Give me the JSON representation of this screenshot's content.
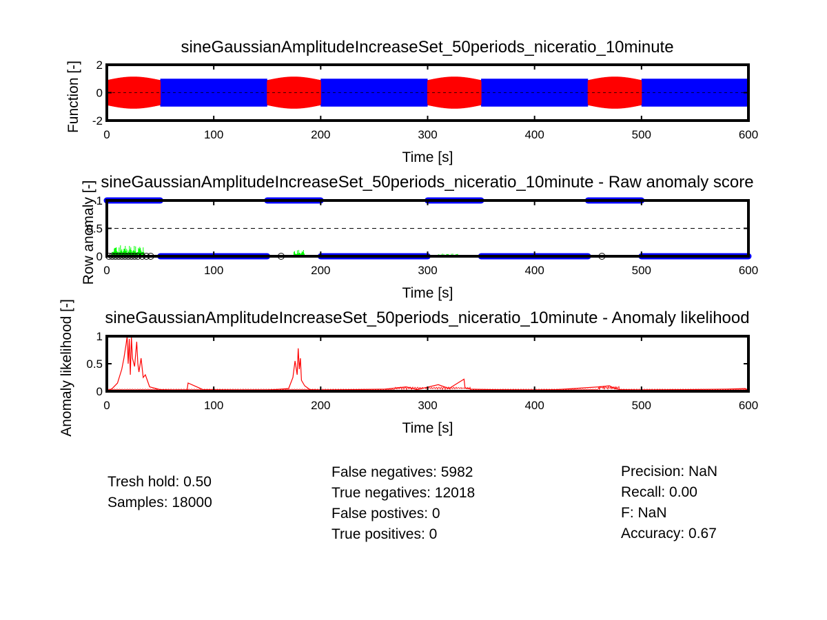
{
  "chart_data": [
    {
      "type": "line",
      "title": "sineGaussianAmplitudeIncreaseSet_50periods_niceratio_10minute",
      "xlabel": "Time [s]",
      "ylabel": "Function [-]",
      "xlim": [
        0,
        600
      ],
      "ylim": [
        -2,
        2
      ],
      "xticks": [
        0,
        100,
        200,
        300,
        400,
        500,
        600
      ],
      "yticks": [
        -2,
        0,
        2
      ],
      "grid": false,
      "series": [
        {
          "color": "#0000ff",
          "description": "sine signal, amplitude 1 (normal)",
          "segments": [
            [
              50,
              150
            ],
            [
              200,
              300
            ],
            [
              350,
              450
            ],
            [
              500,
              600
            ]
          ],
          "amplitude": 1.0
        },
        {
          "color": "#ff0000",
          "description": "sine signal, increased amplitude (anomalous)",
          "segments": [
            [
              0,
              50
            ],
            [
              150,
              200
            ],
            [
              300,
              350
            ],
            [
              450,
              500
            ]
          ],
          "amplitude": 1.15
        }
      ]
    },
    {
      "type": "scatter",
      "title": "sineGaussianAmplitudeIncreaseSet_50periods_niceratio_10minute - Raw anomaly score",
      "xlabel": "Time [s]",
      "ylabel": "Row anomaly [-]",
      "xlim": [
        0,
        600
      ],
      "ylim": [
        0,
        1
      ],
      "xticks": [
        0,
        100,
        200,
        300,
        400,
        500,
        600
      ],
      "yticks": [
        0,
        0.5,
        1
      ],
      "threshold": 0.5,
      "series": [
        {
          "color": "#0000ff",
          "description": "labels (1 = anomaly)",
          "runs": [
            {
              "y": 1,
              "from": 0,
              "to": 50
            },
            {
              "y": 1,
              "from": 150,
              "to": 200
            },
            {
              "y": 1,
              "from": 300,
              "to": 350
            },
            {
              "y": 1,
              "from": 450,
              "to": 500
            },
            {
              "y": 0,
              "from": 50,
              "to": 150
            },
            {
              "y": 0,
              "from": 200,
              "to": 300
            },
            {
              "y": 0,
              "from": 350,
              "to": 450
            },
            {
              "y": 0,
              "from": 500,
              "to": 600
            }
          ]
        },
        {
          "color": "#000000",
          "description": "detections (open circles)",
          "x": [
            2,
            5,
            8,
            11,
            14,
            17,
            20,
            23,
            26,
            29,
            33,
            37,
            41,
            163,
            463
          ]
        },
        {
          "color": "#00ff00",
          "description": "raw anomaly score",
          "bursts": [
            [
              5,
              35,
              0.2
            ],
            [
              175,
              185,
              0.12
            ],
            [
              310,
              330,
              0.05
            ]
          ]
        }
      ]
    },
    {
      "type": "line",
      "title": "sineGaussianAmplitudeIncreaseSet_50periods_niceratio_10minute - Anomaly likelihood",
      "xlabel": "Time [s]",
      "ylabel": "Anomaly likelihood [-]",
      "xlim": [
        0,
        600
      ],
      "ylim": [
        0,
        1
      ],
      "xticks": [
        0,
        100,
        200,
        300,
        400,
        500,
        600
      ],
      "yticks": [
        0,
        0.5,
        1
      ],
      "series": [
        {
          "color": "#ff0000",
          "description": "anomaly likelihood",
          "x": [
            0,
            5,
            10,
            14,
            16,
            18,
            19,
            20,
            21,
            22,
            23,
            24,
            26,
            28,
            29,
            30,
            32,
            34,
            36,
            40,
            50,
            60,
            75,
            76,
            90,
            120,
            150,
            170,
            174,
            176,
            178,
            179,
            180,
            181,
            182,
            185,
            190,
            200,
            230,
            260,
            280,
            290,
            310,
            320,
            334,
            335,
            340,
            360,
            400,
            420,
            460,
            470,
            475,
            480,
            500,
            540,
            580,
            597,
            600
          ],
          "y": [
            0.0,
            0.05,
            0.15,
            0.4,
            0.6,
            0.85,
            1.0,
            0.5,
            0.95,
            0.3,
            0.98,
            0.6,
            0.45,
            0.9,
            0.5,
            0.35,
            0.6,
            0.25,
            0.3,
            0.08,
            0.03,
            0.02,
            0.02,
            0.15,
            0.03,
            0.02,
            0.02,
            0.05,
            0.25,
            0.55,
            0.3,
            0.78,
            0.4,
            0.6,
            0.2,
            0.1,
            0.03,
            0.02,
            0.03,
            0.04,
            0.08,
            0.03,
            0.12,
            0.05,
            0.22,
            0.06,
            0.04,
            0.03,
            0.02,
            0.03,
            0.08,
            0.1,
            0.05,
            0.03,
            0.02,
            0.03,
            0.04,
            0.05,
            0.02
          ]
        }
      ]
    }
  ],
  "stats": {
    "threshold": "Tresh hold: 0.50",
    "samples": "Samples: 18000",
    "false_negatives": "False negatives: 5982",
    "true_negatives": "True negatives: 12018",
    "false_positives": "False postives: 0",
    "true_positives": "True positives: 0",
    "precision": "Precision:  NaN",
    "recall": "Recall: 0.00",
    "f": "F:  NaN",
    "accuracy": "Accuracy: 0.67"
  }
}
